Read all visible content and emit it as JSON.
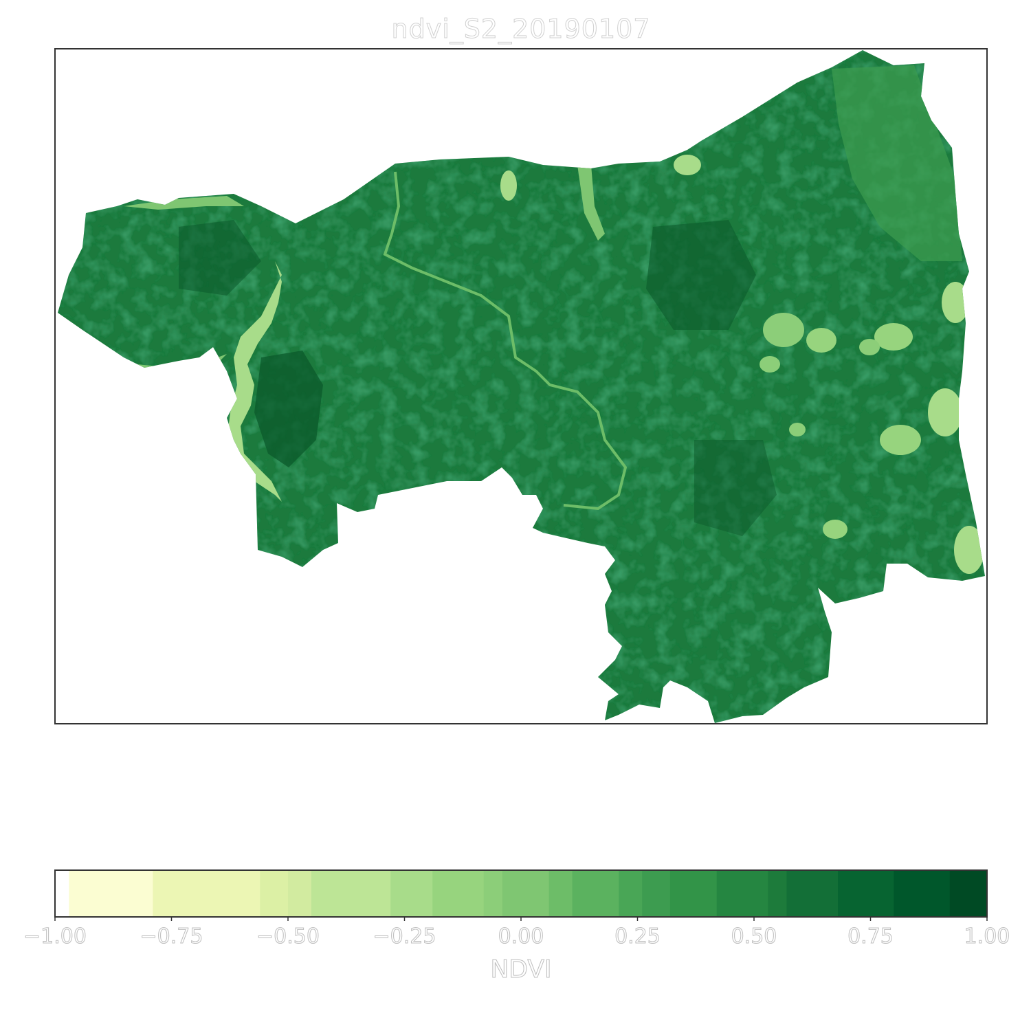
{
  "map": {
    "title": "ndvi_S2_20190107",
    "region_fill": "#1f7a3c",
    "region_fill_dark": "#0b5a2b",
    "water_fill": "#9fd38b",
    "frame_color": "#333333"
  },
  "colorbar": {
    "label": "NDVI",
    "range": [
      -1.0,
      1.0
    ],
    "ticks": [
      "−1.00",
      "−0.75",
      "−0.50",
      "−0.25",
      "0.00",
      "0.25",
      "0.50",
      "0.75",
      "1.00"
    ],
    "tick_values": [
      -1.0,
      -0.75,
      -0.5,
      -0.25,
      0.0,
      0.25,
      0.5,
      0.75,
      1.0
    ],
    "bins": [
      {
        "from": -1.0,
        "to": -0.97,
        "color": "#ffffff"
      },
      {
        "from": -0.97,
        "to": -0.79,
        "color": "#fbfdd2"
      },
      {
        "from": -0.79,
        "to": -0.56,
        "color": "#ecf6b4"
      },
      {
        "from": -0.56,
        "to": -0.5,
        "color": "#dcf0a5"
      },
      {
        "from": -0.5,
        "to": -0.45,
        "color": "#d2eba0"
      },
      {
        "from": -0.45,
        "to": -0.28,
        "color": "#bde596"
      },
      {
        "from": -0.28,
        "to": -0.19,
        "color": "#a8dc8a"
      },
      {
        "from": -0.19,
        "to": -0.08,
        "color": "#97d47e"
      },
      {
        "from": -0.08,
        "to": -0.04,
        "color": "#8cce79"
      },
      {
        "from": -0.04,
        "to": 0.06,
        "color": "#7fc672"
      },
      {
        "from": 0.06,
        "to": 0.11,
        "color": "#6dbd68"
      },
      {
        "from": 0.11,
        "to": 0.21,
        "color": "#5bb25f"
      },
      {
        "from": 0.21,
        "to": 0.26,
        "color": "#49a656"
      },
      {
        "from": 0.26,
        "to": 0.32,
        "color": "#3d9c50"
      },
      {
        "from": 0.32,
        "to": 0.42,
        "color": "#329448"
      },
      {
        "from": 0.42,
        "to": 0.53,
        "color": "#258641"
      },
      {
        "from": 0.53,
        "to": 0.57,
        "color": "#1d7b3b"
      },
      {
        "from": 0.57,
        "to": 0.68,
        "color": "#136f37"
      },
      {
        "from": 0.68,
        "to": 0.8,
        "color": "#076431"
      },
      {
        "from": 0.8,
        "to": 0.92,
        "color": "#00572b"
      },
      {
        "from": 0.92,
        "to": 1.0,
        "color": "#004a24"
      }
    ]
  }
}
